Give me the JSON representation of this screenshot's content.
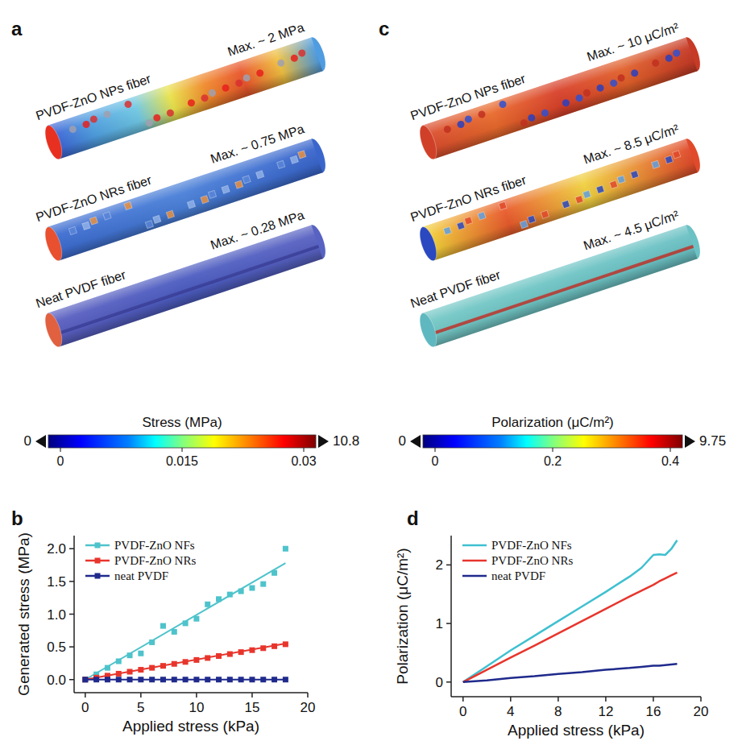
{
  "panel_labels": [
    "a",
    "b",
    "c",
    "d"
  ],
  "panels": [
    {
      "fibers": [
        {
          "name": "PVDF-ZnO NPs fiber",
          "max": "Max. ~ 2 MPa"
        },
        {
          "name": "PVDF-ZnO NRs fiber",
          "max": "Max. ~ 0.75 MPa"
        },
        {
          "name": "Neat PVDF fiber",
          "max": "Max. ~ 0.28 MPa"
        }
      ],
      "colorbar": {
        "title": "Stress (MPa)",
        "range": [
          0,
          0.03
        ],
        "ticks": [
          0,
          0.015,
          0.03
        ],
        "below": 0,
        "above": 10.8
      }
    },
    {
      "fibers": [
        {
          "name": "PVDF-ZnO NPs fiber",
          "max": "Max. ~ 10 μC/m²"
        },
        {
          "name": "PVDF-ZnO NRs fiber",
          "max": "Max. ~ 8.5 μC/m²"
        },
        {
          "name": "Neat PVDF fiber",
          "max": "Max. ~ 4.5 μC/m²"
        }
      ],
      "colorbar": {
        "title": "Polarization (μC/m²)",
        "range": [
          0,
          0.4
        ],
        "ticks": [
          0,
          0.2,
          0.4
        ],
        "below": 0,
        "above": 9.75
      }
    }
  ],
  "chart_data": [
    {
      "type": "scatter",
      "xlabel": "Applied stress (kPa)",
      "ylabel": "Generated stress (MPa)",
      "x": [
        0,
        1,
        2,
        3,
        4,
        5,
        6,
        7,
        8,
        9,
        10,
        11,
        12,
        13,
        14,
        15,
        16,
        17,
        18
      ],
      "xlim": [
        -1,
        20
      ],
      "ylim": [
        -0.2,
        2.2
      ],
      "xticks": [
        0,
        5,
        10,
        15,
        20
      ],
      "yticks": [
        {
          "value": 0,
          "label": "0.0"
        },
        {
          "value": 0.5,
          "label": "0.5"
        },
        {
          "value": 1,
          "label": "1.0"
        },
        {
          "value": 1.5,
          "label": "1.5"
        },
        {
          "value": 2,
          "label": "2.0"
        }
      ],
      "legend": "upper left",
      "series": [
        {
          "name": "PVDF-ZnO NFs",
          "color": "#4ec3cb",
          "marker": "square",
          "values": [
            0,
            0.08,
            0.18,
            0.28,
            0.37,
            0.4,
            0.57,
            0.82,
            0.73,
            0.86,
            0.93,
            1.15,
            1.23,
            1.3,
            1.35,
            1.4,
            1.46,
            1.63,
            2.0
          ],
          "fit": {
            "x": [
              0,
              18
            ],
            "values": [
              0,
              1.78
            ]
          }
        },
        {
          "name": "PVDF-ZnO NRs",
          "color": "#e8352c",
          "marker": "square",
          "values": [
            0,
            0.03,
            0.06,
            0.09,
            0.12,
            0.15,
            0.18,
            0.21,
            0.24,
            0.27,
            0.3,
            0.33,
            0.36,
            0.39,
            0.42,
            0.45,
            0.48,
            0.51,
            0.54
          ],
          "fit": {
            "x": [
              0,
              18
            ],
            "values": [
              0,
              0.55
            ]
          }
        },
        {
          "name": "neat PVDF",
          "color": "#1f2a8c",
          "marker": "square",
          "values": [
            0,
            0,
            0,
            0,
            0,
            0,
            0,
            0,
            0,
            0,
            0,
            0,
            0,
            0,
            0,
            0,
            0,
            0,
            0
          ],
          "fit": {
            "x": [
              0,
              18
            ],
            "values": [
              0,
              0
            ]
          }
        }
      ]
    },
    {
      "type": "line",
      "xlabel": "Applied stress (kPa)",
      "ylabel": "Polarization (μC/m²)",
      "x": [
        0,
        2,
        4,
        6,
        8,
        10,
        12,
        14,
        15,
        16,
        16.5,
        17,
        17.5,
        18
      ],
      "xlim": [
        -1,
        20
      ],
      "ylim": [
        -0.25,
        2.5
      ],
      "xticks": [
        0,
        4,
        8,
        12,
        16,
        20
      ],
      "yticks": [
        0,
        1,
        2
      ],
      "legend": "upper left",
      "series": [
        {
          "name": "PVDF-ZnO NFs",
          "color": "#3fc0d0",
          "values": [
            0,
            0.27,
            0.54,
            0.79,
            1.04,
            1.29,
            1.54,
            1.8,
            1.95,
            2.17,
            2.18,
            2.17,
            2.27,
            2.42
          ]
        },
        {
          "name": "PVDF-ZnO NRs",
          "color": "#e8352c",
          "values": [
            0,
            0.21,
            0.42,
            0.62,
            0.83,
            1.04,
            1.25,
            1.46,
            1.56,
            1.66,
            1.72,
            1.77,
            1.82,
            1.87
          ]
        },
        {
          "name": "neat PVDF",
          "color": "#1f2a8c",
          "values": [
            0,
            0.03,
            0.07,
            0.1,
            0.14,
            0.17,
            0.21,
            0.24,
            0.26,
            0.28,
            0.28,
            0.29,
            0.3,
            0.31
          ]
        }
      ]
    }
  ]
}
